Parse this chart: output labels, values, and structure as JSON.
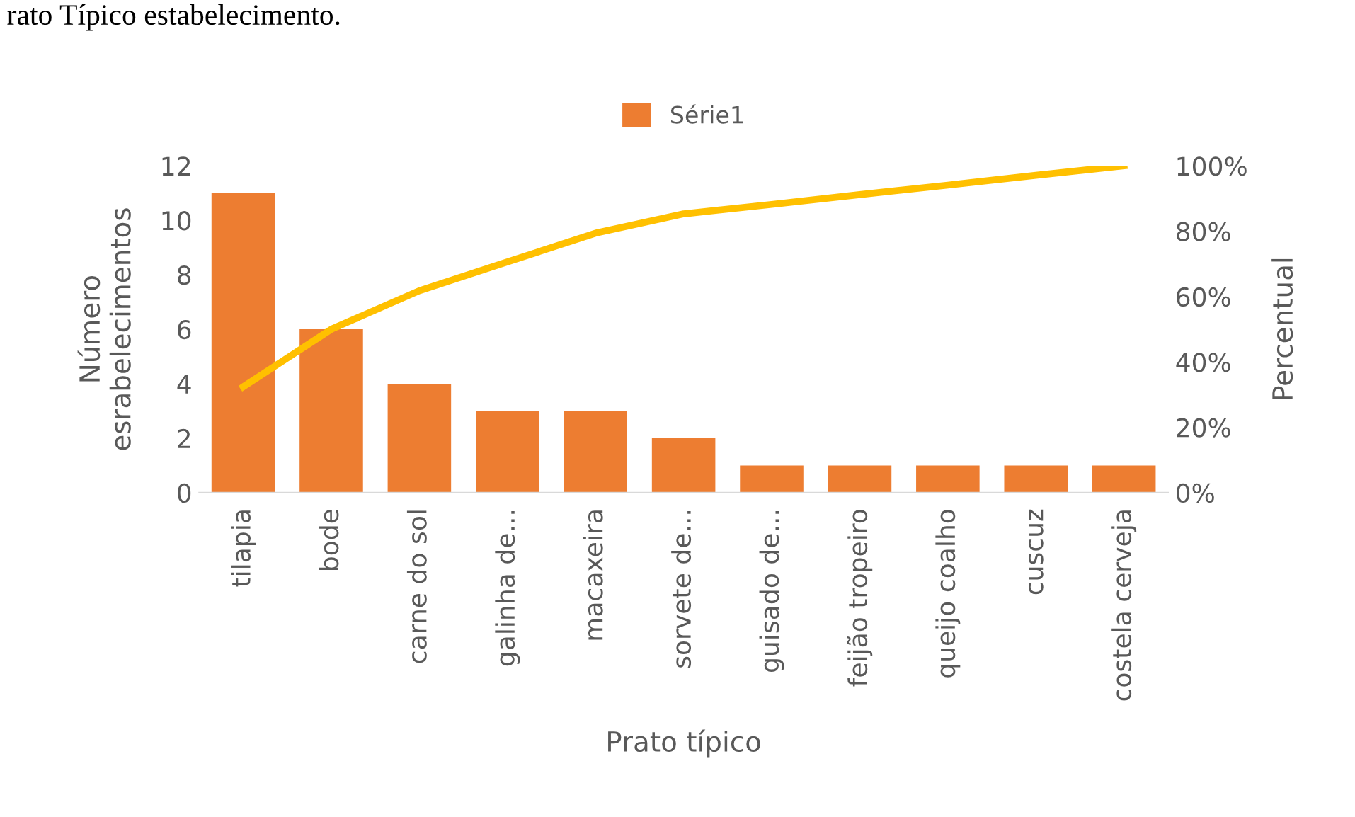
{
  "chart_data": {
    "type": "bar",
    "xlabel": "Prato típico",
    "ylabel": "Número\nesrabelecimentos",
    "y2label": "Percentual",
    "annotations": [
      "rato Típico estabelecimento."
    ],
    "categories": [
      "tilapia",
      "bode",
      "carne do sol",
      "galinha de...",
      "macaxeira",
      "sorvete de...",
      "guisado de...",
      "feijão tropeiro",
      "queijo coalho",
      "cuscuz",
      "costela cerveja"
    ],
    "series": [
      {
        "name": "Série1",
        "color": "#ed7d31",
        "values": [
          11,
          6,
          4,
          3,
          3,
          2,
          1,
          1,
          1,
          1,
          1
        ]
      },
      {
        "type": "line",
        "axis": "y2",
        "color": "#ffc000",
        "values": [
          32.4,
          50.0,
          61.8,
          70.6,
          79.4,
          85.3,
          88.2,
          91.2,
          94.1,
          97.1,
          100
        ]
      }
    ],
    "ylim": [
      0,
      12
    ],
    "yticks": [
      0,
      2,
      4,
      6,
      8,
      10,
      12
    ],
    "y2lim": [
      0,
      100
    ],
    "y2ticks": [
      {
        "value": 0,
        "label": "0%"
      },
      {
        "value": 20,
        "label": "20%"
      },
      {
        "value": 40,
        "label": "40%"
      },
      {
        "value": 60,
        "label": "60%"
      },
      {
        "value": 80,
        "label": "80%"
      },
      {
        "value": 100,
        "label": "100%"
      }
    ],
    "grid": false,
    "legend": "top",
    "marker": "none",
    "line_style": "solid"
  }
}
